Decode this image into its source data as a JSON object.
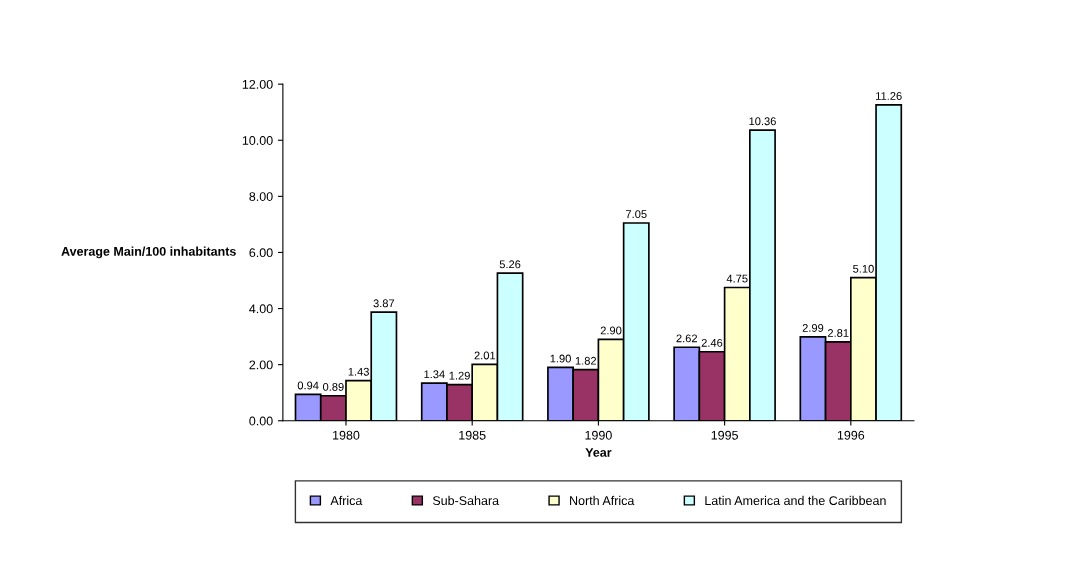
{
  "chart_data": {
    "type": "bar",
    "xlabel": "Year",
    "ylabel": "Average Main/100 inhabitants",
    "categories": [
      "1980",
      "1985",
      "1990",
      "1995",
      "1996"
    ],
    "series": [
      {
        "name": "Africa",
        "color": "#9999ff",
        "values": [
          0.94,
          1.34,
          1.9,
          2.62,
          2.99
        ],
        "value_labels": [
          "0.94",
          "1.34",
          "1.90",
          "2.62",
          "2.99"
        ]
      },
      {
        "name": "Sub-Sahara",
        "color": "#993366",
        "values": [
          0.89,
          1.29,
          1.82,
          2.46,
          2.81
        ],
        "value_labels": [
          "0.89",
          "1.29",
          "1.82",
          "2.46",
          "2.81"
        ]
      },
      {
        "name": "North Africa",
        "color": "#ffffcc",
        "values": [
          1.43,
          2.01,
          2.9,
          4.75,
          5.1
        ],
        "value_labels": [
          "1.43",
          "2.01",
          "2.90",
          "4.75",
          "5.10"
        ]
      },
      {
        "name": "Latin America and the Caribbean",
        "color": "#ccffff",
        "values": [
          3.87,
          5.26,
          7.05,
          10.36,
          11.26
        ],
        "value_labels": [
          "3.87",
          "5.26",
          "7.05",
          "10.36",
          "11.26"
        ]
      }
    ],
    "ylim": [
      0,
      12
    ],
    "yticks": [
      {
        "value": 0,
        "label": "0.00"
      },
      {
        "value": 2,
        "label": "2.00"
      },
      {
        "value": 4,
        "label": "4.00"
      },
      {
        "value": 6,
        "label": "6.00"
      },
      {
        "value": 8,
        "label": "8.00"
      },
      {
        "value": 10,
        "label": "10.00"
      },
      {
        "value": 12,
        "label": "12.00"
      }
    ],
    "legend": "bottom",
    "grid": false
  }
}
